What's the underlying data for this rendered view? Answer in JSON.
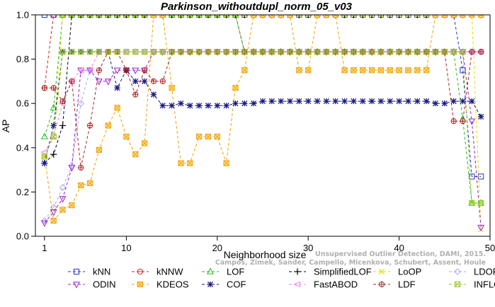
{
  "chart_data": {
    "type": "line",
    "title": "Parkinson_withoutdupl_norm_05_v03",
    "xlabel": "Neighborhood size",
    "ylabel": "AP",
    "xlim": [
      0,
      50
    ],
    "ylim": [
      0,
      1
    ],
    "xticks": [
      1,
      10,
      20,
      30,
      40,
      50
    ],
    "yticks": [
      0.0,
      0.2,
      0.4,
      0.6,
      0.8,
      1.0
    ],
    "grid": false,
    "legend_position": "bottom",
    "watermark": [
      "Unsupervised Outlier Detection, DAMI, 2015.",
      "Campos, Zimek, Sander, Campello, Micenkova, Schubert, Assent, Houle"
    ],
    "x": [
      1,
      2,
      3,
      4,
      5,
      6,
      7,
      8,
      9,
      10,
      11,
      12,
      13,
      14,
      15,
      16,
      17,
      18,
      19,
      20,
      21,
      22,
      23,
      24,
      25,
      26,
      27,
      28,
      29,
      30,
      31,
      32,
      33,
      34,
      35,
      36,
      37,
      38,
      39,
      40,
      41,
      42,
      43,
      44,
      45,
      46,
      47,
      48,
      49
    ],
    "series": [
      {
        "name": "kNN",
        "color": "#2233cc",
        "marker": "square",
        "values": [
          1.0,
          1.0,
          1.0,
          1.0,
          1.0,
          1.0,
          1.0,
          1.0,
          1.0,
          1.0,
          1.0,
          1.0,
          1.0,
          1.0,
          1.0,
          1.0,
          1.0,
          1.0,
          1.0,
          1.0,
          1.0,
          1.0,
          1.0,
          1.0,
          1.0,
          1.0,
          1.0,
          1.0,
          1.0,
          1.0,
          1.0,
          1.0,
          1.0,
          1.0,
          1.0,
          1.0,
          1.0,
          1.0,
          1.0,
          1.0,
          1.0,
          1.0,
          1.0,
          1.0,
          1.0,
          1.0,
          0.75,
          0.27,
          0.27
        ]
      },
      {
        "name": "kNNW",
        "color": "#cc2222",
        "marker": "circle",
        "values": [
          0.67,
          1.0,
          1.0,
          1.0,
          1.0,
          1.0,
          1.0,
          1.0,
          1.0,
          1.0,
          1.0,
          1.0,
          1.0,
          1.0,
          1.0,
          1.0,
          1.0,
          1.0,
          1.0,
          1.0,
          1.0,
          1.0,
          0.833,
          0.833,
          0.833,
          0.833,
          0.833,
          0.833,
          0.833,
          0.833,
          0.833,
          0.833,
          0.833,
          0.833,
          0.833,
          0.833,
          0.833,
          0.833,
          0.833,
          0.833,
          0.833,
          0.833,
          0.833,
          0.833,
          0.833,
          0.833,
          0.833,
          0.833,
          0.833
        ]
      },
      {
        "name": "LOF",
        "color": "#22bb22",
        "marker": "triangle-up",
        "values": [
          0.45,
          0.58,
          1.0,
          1.0,
          1.0,
          1.0,
          1.0,
          1.0,
          1.0,
          1.0,
          1.0,
          1.0,
          1.0,
          1.0,
          1.0,
          1.0,
          1.0,
          1.0,
          1.0,
          1.0,
          1.0,
          1.0,
          0.833,
          0.833,
          0.833,
          0.833,
          0.833,
          0.833,
          0.833,
          0.833,
          0.833,
          0.833,
          0.833,
          0.833,
          0.833,
          0.833,
          0.833,
          0.833,
          0.833,
          0.833,
          0.833,
          0.833,
          0.833,
          0.833,
          0.833,
          0.833,
          0.53,
          0.15,
          0.15
        ]
      },
      {
        "name": "SimplifiedLOF",
        "color": "#000000",
        "marker": "plus",
        "values": [
          0.33,
          0.37,
          0.5,
          1.0,
          1.0,
          1.0,
          1.0,
          1.0,
          1.0,
          1.0,
          1.0,
          1.0,
          1.0,
          1.0,
          1.0,
          1.0,
          1.0,
          1.0,
          1.0,
          1.0,
          1.0,
          1.0,
          1.0,
          1.0,
          1.0,
          1.0,
          1.0,
          1.0,
          1.0,
          1.0,
          1.0,
          1.0,
          1.0,
          1.0,
          1.0,
          1.0,
          1.0,
          1.0,
          1.0,
          1.0,
          1.0,
          1.0,
          1.0,
          1.0,
          1.0,
          1.0,
          1.0,
          1.0,
          1.0
        ]
      },
      {
        "name": "LoOP",
        "color": "#dddd00",
        "marker": "x",
        "values": [
          0.36,
          0.45,
          1.0,
          1.0,
          1.0,
          1.0,
          1.0,
          1.0,
          1.0,
          1.0,
          1.0,
          1.0,
          1.0,
          1.0,
          1.0,
          1.0,
          1.0,
          1.0,
          1.0,
          1.0,
          1.0,
          1.0,
          1.0,
          1.0,
          1.0,
          1.0,
          1.0,
          1.0,
          1.0,
          1.0,
          1.0,
          1.0,
          1.0,
          1.0,
          1.0,
          1.0,
          1.0,
          1.0,
          1.0,
          1.0,
          1.0,
          1.0,
          1.0,
          1.0,
          1.0,
          1.0,
          1.0,
          1.0,
          0.03
        ]
      },
      {
        "name": "LDOF",
        "color": "#aaaaee",
        "marker": "diamond",
        "values": [
          0.07,
          0.13,
          0.22,
          0.32,
          0.6,
          0.75,
          0.833,
          0.833,
          0.833,
          0.833,
          0.833,
          0.833,
          0.833,
          0.833,
          0.833,
          0.833,
          0.833,
          0.833,
          0.833,
          0.833,
          0.833,
          0.833,
          0.833,
          0.833,
          0.833,
          0.833,
          0.833,
          0.833,
          0.833,
          0.833,
          0.833,
          0.833,
          0.833,
          0.833,
          0.833,
          0.833,
          0.833,
          0.833,
          0.833,
          0.833,
          0.833,
          0.833,
          0.833,
          0.833,
          0.833,
          0.833,
          0.833,
          0.833,
          0.833
        ]
      },
      {
        "name": "ODIN",
        "color": "#9922cc",
        "marker": "triangle-down",
        "values": [
          0.06,
          0.11,
          0.17,
          0.31,
          0.75,
          0.75,
          0.7,
          0.7,
          0.75,
          0.75,
          0.75,
          0.75,
          0.833,
          0.833,
          0.833,
          0.833,
          0.833,
          0.833,
          0.833,
          0.833,
          0.833,
          0.833,
          0.833,
          0.833,
          0.833,
          0.833,
          0.833,
          0.833,
          0.833,
          0.833,
          0.833,
          0.833,
          0.833,
          0.833,
          0.833,
          0.833,
          0.833,
          0.833,
          0.833,
          0.833,
          0.833,
          0.833,
          0.833,
          0.833,
          0.833,
          0.833,
          0.833,
          0.52,
          0.04
        ]
      },
      {
        "name": "KDEOS",
        "color": "#f0a000",
        "marker": "square-x",
        "values": [
          0.36,
          0.07,
          0.12,
          0.14,
          0.23,
          0.24,
          0.39,
          0.5,
          0.58,
          0.45,
          0.37,
          0.42,
          1.0,
          1.0,
          0.67,
          0.33,
          0.33,
          0.45,
          0.45,
          0.45,
          0.33,
          0.67,
          0.75,
          1.0,
          1.0,
          1.0,
          1.0,
          1.0,
          0.75,
          0.75,
          1.0,
          1.0,
          1.0,
          0.75,
          0.75,
          0.75,
          0.75,
          0.75,
          0.75,
          0.75,
          0.75,
          0.75,
          0.75,
          1.0,
          1.0,
          1.0,
          1.0,
          1.0,
          1.0
        ]
      },
      {
        "name": "COF",
        "color": "#1a1a80",
        "marker": "asterisk",
        "values": [
          0.33,
          0.5,
          0.833,
          0.833,
          0.833,
          0.833,
          0.833,
          0.833,
          0.67,
          0.75,
          0.7,
          0.7,
          0.64,
          0.59,
          0.59,
          0.6,
          0.59,
          0.59,
          0.59,
          0.59,
          0.59,
          0.6,
          0.6,
          0.6,
          0.61,
          0.61,
          0.61,
          0.61,
          0.61,
          0.61,
          0.61,
          0.61,
          0.61,
          0.61,
          0.61,
          0.61,
          0.61,
          0.61,
          0.61,
          0.61,
          0.61,
          0.61,
          0.61,
          0.6,
          0.6,
          0.61,
          0.61,
          0.61,
          0.54
        ]
      },
      {
        "name": "FastABOD",
        "color": "#ee88ee",
        "marker": "triangle-left",
        "values": [
          0.38,
          0.45,
          0.6,
          0.7,
          0.75,
          0.75,
          0.833,
          0.833,
          0.833,
          0.833,
          0.833,
          0.833,
          0.833,
          0.833,
          0.833,
          0.833,
          0.833,
          0.833,
          0.833,
          0.833,
          0.833,
          0.833,
          0.833,
          0.833,
          0.833,
          0.833,
          0.833,
          0.833,
          0.833,
          0.833,
          0.833,
          0.833,
          0.833,
          0.833,
          0.833,
          0.833,
          0.833,
          0.833,
          0.833,
          0.833,
          0.833,
          0.833,
          0.833,
          0.833,
          0.833,
          0.833,
          0.833,
          0.833,
          0.833
        ]
      },
      {
        "name": "LDF",
        "color": "#aa2222",
        "marker": "circle-plus",
        "values": [
          0.67,
          0.67,
          0.61,
          0.7,
          0.31,
          0.5,
          0.75,
          0.833,
          0.833,
          0.75,
          0.64,
          0.75,
          0.7,
          0.7,
          0.833,
          0.833,
          0.833,
          0.833,
          0.833,
          0.833,
          0.833,
          0.833,
          0.833,
          0.833,
          0.833,
          0.833,
          0.833,
          0.833,
          0.833,
          0.833,
          0.833,
          0.833,
          0.833,
          0.833,
          0.833,
          0.833,
          0.833,
          0.833,
          0.833,
          0.833,
          0.833,
          0.833,
          0.833,
          0.833,
          0.833,
          0.52,
          0.52,
          0.833,
          0.833
        ]
      },
      {
        "name": "INFLO",
        "color": "#99cc22",
        "marker": "square-cross",
        "values": [
          0.36,
          0.45,
          0.833,
          0.833,
          0.833,
          0.833,
          0.833,
          0.833,
          0.833,
          0.833,
          0.833,
          0.833,
          0.833,
          0.833,
          0.833,
          0.833,
          0.833,
          0.833,
          0.833,
          0.833,
          0.833,
          0.833,
          0.833,
          0.833,
          0.833,
          0.833,
          0.833,
          0.833,
          0.833,
          0.833,
          0.833,
          0.833,
          0.833,
          0.833,
          0.833,
          0.833,
          0.833,
          0.833,
          0.833,
          0.833,
          0.833,
          0.833,
          0.833,
          0.833,
          0.833,
          0.833,
          0.833,
          0.15,
          0.15
        ]
      }
    ]
  }
}
